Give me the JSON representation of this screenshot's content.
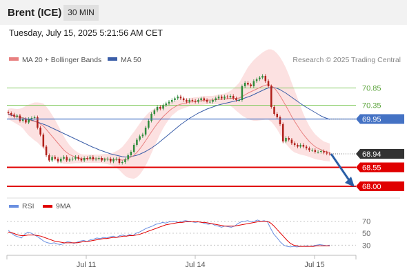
{
  "header": {
    "instrument": "Brent (ICE)",
    "timeframe": "30 MIN"
  },
  "timestamp": "Tuesday, July 15, 2025 5:21:56 AM CET",
  "legend": {
    "ma20": "MA 20 + Bollinger Bands",
    "ma50": "MA 50",
    "credit": "Research © 2025 Trading Central"
  },
  "rsi_legend": {
    "rsi": "RSI",
    "ma": "9MA"
  },
  "colors": {
    "ma20": "#e88080",
    "ma50": "#3b5ea8",
    "bands": "#fcdcdc",
    "green_level": "#7ec85a",
    "blue_level": "#4472c4",
    "red_level": "#e00000",
    "candle_up": "#2e8b3a",
    "candle_down": "#b0201a",
    "rsi": "#6a8fe0",
    "rsi_ma": "#e00000",
    "arrow": "#2a5fa6"
  },
  "chart_data": [
    {
      "type": "candlestick",
      "title": "Brent (ICE) 30 MIN",
      "x_tick_labels": [
        "Jul 11",
        "Jul 14",
        "Jul 15"
      ],
      "y_range": [
        67.8,
        71.3
      ],
      "levels": [
        {
          "label": "70.85",
          "value": 70.85,
          "kind": "resistance"
        },
        {
          "label": "70.35",
          "value": 70.35,
          "kind": "resistance"
        },
        {
          "label": "69.95",
          "value": 69.95,
          "kind": "pivot"
        },
        {
          "label": "68.94",
          "value": 68.94,
          "kind": "last"
        },
        {
          "label": "68.55",
          "value": 68.55,
          "kind": "target"
        },
        {
          "label": "68.00",
          "value": 68.0,
          "kind": "target"
        }
      ],
      "close": [
        70.12,
        70.08,
        70.02,
        70.05,
        69.9,
        69.95,
        69.85,
        69.95,
        69.98,
        70.0,
        69.7,
        69.5,
        69.15,
        68.9,
        68.75,
        68.85,
        68.8,
        68.72,
        68.8,
        68.85,
        68.75,
        68.78,
        68.8,
        68.85,
        68.8,
        68.75,
        68.82,
        68.8,
        68.85,
        68.78,
        68.8,
        68.82,
        68.75,
        68.78,
        68.8,
        68.72,
        68.78,
        68.8,
        68.68,
        68.7,
        68.78,
        68.9,
        69.0,
        69.2,
        69.35,
        69.45,
        69.5,
        69.7,
        69.9,
        70.1,
        70.2,
        70.3,
        70.25,
        70.35,
        70.4,
        70.45,
        70.5,
        70.55,
        70.6,
        70.55,
        70.5,
        70.45,
        70.5,
        70.48,
        70.45,
        70.5,
        70.55,
        70.5,
        70.45,
        70.45,
        70.5,
        70.55,
        70.6,
        70.55,
        70.6,
        70.58,
        70.62,
        70.55,
        70.5,
        70.5,
        70.9,
        71.0,
        70.95,
        70.9,
        71.05,
        71.1,
        71.15,
        71.2,
        71.05,
        70.9,
        70.3,
        70.1,
        70.0,
        69.8,
        69.3,
        69.4,
        69.35,
        69.25,
        69.2,
        69.15,
        69.2,
        69.15,
        69.1,
        69.05,
        69.05,
        69.0,
        69.0,
        69.02,
        68.98,
        68.95,
        68.94
      ],
      "ma20": [
        70.1,
        70.08,
        70.05,
        70.02,
        70.0,
        69.98,
        69.95,
        69.92,
        69.9,
        69.88,
        69.85,
        69.8,
        69.75,
        69.65,
        69.55,
        69.45,
        69.35,
        69.25,
        69.15,
        69.05,
        68.98,
        68.92,
        68.88,
        68.85,
        68.82,
        68.8,
        68.8,
        68.8,
        68.8,
        68.8,
        68.8,
        68.8,
        68.8,
        68.8,
        68.79,
        68.78,
        68.78,
        68.78,
        68.77,
        68.76,
        68.77,
        68.8,
        68.85,
        68.9,
        68.98,
        69.08,
        69.2,
        69.32,
        69.45,
        69.58,
        69.7,
        69.82,
        69.92,
        70.02,
        70.1,
        70.18,
        70.25,
        70.3,
        70.35,
        70.38,
        70.4,
        70.42,
        70.44,
        70.45,
        70.46,
        70.47,
        70.48,
        70.49,
        70.5,
        70.5,
        70.5,
        70.51,
        70.52,
        70.52,
        70.53,
        70.54,
        70.55,
        70.55,
        70.55,
        70.56,
        70.6,
        70.65,
        70.7,
        70.74,
        70.78,
        70.82,
        70.86,
        70.9,
        70.93,
        70.95,
        70.92,
        70.85,
        70.75,
        70.62,
        70.48,
        70.33,
        70.18,
        70.02,
        69.88,
        69.75,
        69.62,
        69.5,
        69.4,
        69.3,
        69.22,
        69.15,
        69.1,
        69.06,
        69.02,
        69.0,
        68.98
      ],
      "ma50": [
        70.08,
        70.06,
        70.04,
        70.02,
        70.0,
        69.98,
        69.96,
        69.94,
        69.92,
        69.89,
        69.86,
        69.83,
        69.8,
        69.77,
        69.73,
        69.69,
        69.65,
        69.61,
        69.57,
        69.53,
        69.49,
        69.45,
        69.41,
        69.37,
        69.33,
        69.29,
        69.25,
        69.21,
        69.17,
        69.13,
        69.1,
        69.06,
        69.03,
        69.0,
        68.97,
        68.94,
        68.92,
        68.9,
        68.88,
        68.86,
        68.85,
        68.85,
        68.86,
        68.88,
        68.9,
        68.93,
        68.97,
        69.01,
        69.06,
        69.11,
        69.17,
        69.23,
        69.3,
        69.37,
        69.44,
        69.51,
        69.58,
        69.65,
        69.72,
        69.79,
        69.85,
        69.91,
        69.97,
        70.02,
        70.07,
        70.12,
        70.16,
        70.2,
        70.24,
        70.27,
        70.3,
        70.33,
        70.36,
        70.38,
        70.4,
        70.42,
        70.44,
        70.46,
        70.48,
        70.5,
        70.53,
        70.56,
        70.59,
        70.62,
        70.66,
        70.7,
        70.74,
        70.78,
        70.82,
        70.85,
        70.86,
        70.86,
        70.84,
        70.8,
        70.75,
        70.7,
        70.64,
        70.58,
        70.52,
        70.46,
        70.4,
        70.34,
        70.29,
        70.24,
        70.19,
        70.14,
        70.09,
        70.04,
        70.0,
        69.97,
        69.94
      ],
      "band_width": [
        0.15,
        0.18,
        0.2,
        0.22,
        0.25,
        0.3,
        0.38,
        0.45,
        0.5,
        0.55,
        0.58,
        0.62,
        0.65,
        0.66,
        0.65,
        0.62,
        0.58,
        0.52,
        0.46,
        0.4,
        0.33,
        0.27,
        0.22,
        0.18,
        0.15,
        0.13,
        0.12,
        0.12,
        0.12,
        0.12,
        0.12,
        0.12,
        0.13,
        0.14,
        0.15,
        0.17,
        0.2,
        0.24,
        0.3,
        0.38,
        0.47,
        0.55,
        0.62,
        0.68,
        0.72,
        0.74,
        0.74,
        0.72,
        0.68,
        0.62,
        0.55,
        0.48,
        0.4,
        0.34,
        0.28,
        0.24,
        0.2,
        0.18,
        0.16,
        0.15,
        0.14,
        0.13,
        0.12,
        0.12,
        0.12,
        0.12,
        0.12,
        0.12,
        0.12,
        0.12,
        0.12,
        0.13,
        0.14,
        0.15,
        0.16,
        0.18,
        0.22,
        0.28,
        0.36,
        0.44,
        0.55,
        0.65,
        0.75,
        0.82,
        0.88,
        0.92,
        0.95,
        0.98,
        1.0,
        1.02,
        1.05,
        1.08,
        1.1,
        1.12,
        1.12,
        1.1,
        1.05,
        0.98,
        0.9,
        0.8,
        0.7,
        0.6,
        0.52,
        0.45,
        0.4,
        0.36,
        0.33,
        0.3,
        0.28,
        0.27,
        0.26
      ]
    },
    {
      "type": "line",
      "title": "RSI",
      "series": [
        {
          "name": "RSI",
          "values": [
            55,
            50,
            46,
            44,
            42,
            48,
            52,
            50,
            47,
            44,
            40,
            36,
            34,
            33,
            34,
            32,
            31,
            33,
            36,
            35,
            33,
            35,
            37,
            38,
            36,
            39,
            40,
            42,
            41,
            43,
            42,
            44,
            45,
            43,
            46,
            47,
            45,
            48,
            46,
            50,
            52,
            55,
            58,
            60,
            62,
            65,
            66,
            68,
            67,
            69,
            70,
            69,
            68,
            70,
            71,
            70,
            69,
            68,
            69,
            68,
            66,
            65,
            66,
            63,
            62,
            60,
            62,
            61,
            60,
            62,
            66,
            69,
            70,
            71,
            69,
            70,
            72,
            70,
            71,
            69,
            58,
            48,
            42,
            35,
            30,
            28,
            27,
            28,
            27,
            28,
            28,
            29,
            28,
            29,
            30,
            31,
            30,
            29,
            30
          ],
          "ma_name": "9MA"
        },
        {
          "name": "9MA",
          "values": [
            52,
            51,
            49,
            47,
            46,
            46,
            47,
            47,
            47,
            46,
            45,
            43,
            41,
            39,
            37,
            36,
            35,
            34,
            34,
            34,
            34,
            34,
            35,
            36,
            36,
            37,
            38,
            39,
            40,
            41,
            41,
            42,
            43,
            43,
            44,
            45,
            45,
            46,
            46,
            47,
            48,
            50,
            52,
            54,
            56,
            58,
            60,
            62,
            64,
            65,
            66,
            67,
            68,
            68,
            69,
            69,
            69,
            69,
            69,
            68,
            68,
            67,
            66,
            65,
            64,
            63,
            62,
            62,
            62,
            62,
            63,
            64,
            65,
            66,
            67,
            68,
            69,
            70,
            70,
            70,
            67,
            62,
            56,
            50,
            44,
            38,
            33,
            30,
            29,
            28,
            28,
            28,
            28,
            28,
            29,
            29,
            29,
            29,
            29
          ]
        }
      ],
      "y_ticks": [
        30,
        50,
        70
      ],
      "y_range": [
        20,
        80
      ]
    }
  ]
}
